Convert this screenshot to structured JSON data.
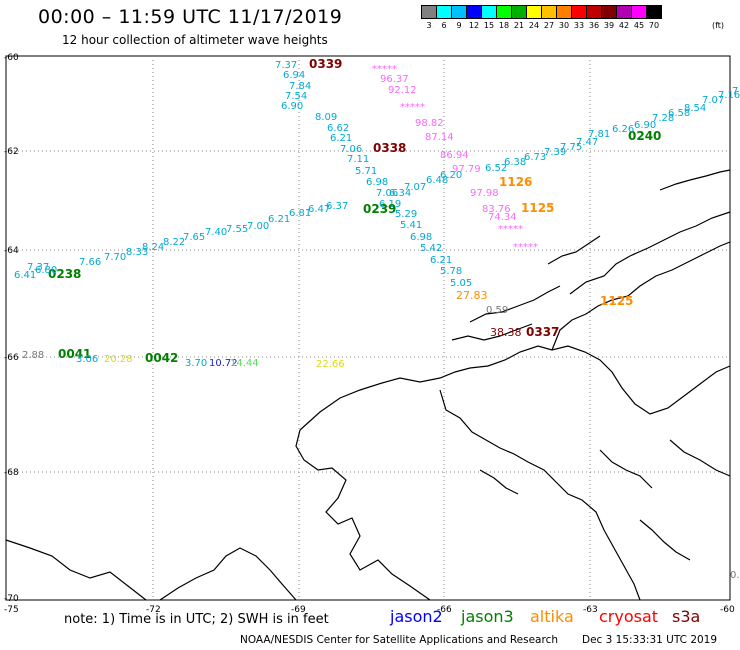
{
  "header": {
    "title": "00:00 – 11:59 UTC 11/17/2019",
    "subtitle": "12 hour collection of altimeter wave heights"
  },
  "legend": {
    "labels": [
      "3",
      "6",
      "9",
      "12",
      "15",
      "18",
      "21",
      "24",
      "27",
      "30",
      "33",
      "36",
      "39",
      "42",
      "45",
      "70"
    ],
    "colors": [
      "#808080",
      "#00ffff",
      "#00bfff",
      "#0000ff",
      "#00ffff",
      "#00ff00",
      "#00b000",
      "#ffff00",
      "#ffc000",
      "#ff8000",
      "#ff0000",
      "#c00000",
      "#800000",
      "#b000b0",
      "#ff00ff",
      "#000000"
    ],
    "units": "(ft)"
  },
  "axes": {
    "lat_labels": [
      "-60",
      "-62",
      "-64",
      "-66",
      "-68",
      "-70"
    ],
    "lon_labels": [
      "-75",
      "-72",
      "-69",
      "-66",
      "-63",
      "-60"
    ]
  },
  "satellite_colors": {
    "jason2": "#0000ff",
    "jason3": "#008000",
    "altika": "#ff8c00",
    "cryosat": "#ff0000",
    "s3a": "#800000",
    "cyan": "#00aad4",
    "pink": "#ff66ff",
    "lavender": "#e080e0",
    "gray": "#777777",
    "yellow": "#dddd00",
    "lime": "#55dd55",
    "navy": "#2222cc"
  },
  "map_labels": [
    {
      "text": "7.37",
      "color": "cyan"
    },
    {
      "text": "6.94",
      "color": "cyan"
    },
    {
      "text": "7.84",
      "color": "cyan"
    },
    {
      "text": "7.54",
      "color": "cyan"
    },
    {
      "text": "6.90",
      "color": "cyan"
    },
    {
      "text": "8.09",
      "color": "cyan"
    },
    {
      "text": "6.62",
      "color": "cyan"
    },
    {
      "text": "6.21",
      "color": "cyan"
    },
    {
      "text": "7.06",
      "color": "cyan"
    },
    {
      "text": "7.11",
      "color": "cyan"
    },
    {
      "text": "5.71",
      "color": "cyan"
    },
    {
      "text": "6.98",
      "color": "cyan"
    },
    {
      "text": "7.06",
      "color": "cyan"
    },
    {
      "text": "6.34",
      "color": "cyan"
    },
    {
      "text": "6.19",
      "color": "cyan"
    },
    {
      "text": "5.29",
      "color": "cyan"
    },
    {
      "text": "5.41",
      "color": "cyan"
    },
    {
      "text": "6.98",
      "color": "cyan"
    },
    {
      "text": "5.42",
      "color": "cyan"
    },
    {
      "text": "6.21",
      "color": "cyan"
    },
    {
      "text": "5.78",
      "color": "cyan"
    },
    {
      "text": "5.05",
      "color": "cyan"
    },
    {
      "text": "0339",
      "color": "s3a"
    },
    {
      "text": "0338",
      "color": "s3a"
    },
    {
      "text": "*****",
      "color": "pink"
    },
    {
      "text": "96.37",
      "color": "pink"
    },
    {
      "text": "92.12",
      "color": "pink"
    },
    {
      "text": "*****",
      "color": "pink"
    },
    {
      "text": "98.82",
      "color": "pink"
    },
    {
      "text": "87.14",
      "color": "pink"
    },
    {
      "text": "86.94",
      "color": "pink"
    },
    {
      "text": "97.79",
      "color": "pink"
    },
    {
      "text": "97.98",
      "color": "pink"
    },
    {
      "text": "83.76",
      "color": "pink"
    },
    {
      "text": "74.34",
      "color": "pink"
    },
    {
      "text": "*****",
      "color": "pink"
    },
    {
      "text": "*****",
      "color": "pink"
    },
    {
      "text": "1126",
      "color": "altika"
    },
    {
      "text": "1125",
      "color": "altika"
    },
    {
      "text": "1125",
      "color": "altika"
    },
    {
      "text": "27.83",
      "color": "altika"
    },
    {
      "text": "0.59",
      "color": "gray"
    },
    {
      "text": "0240",
      "color": "jason3"
    },
    {
      "text": "0239",
      "color": "jason3"
    },
    {
      "text": "0238",
      "color": "jason3"
    },
    {
      "text": "0041",
      "color": "jason3"
    },
    {
      "text": "0042",
      "color": "jason3"
    },
    {
      "text": "7.37",
      "color": "cyan"
    },
    {
      "text": "7.66",
      "color": "cyan"
    },
    {
      "text": "7.70",
      "color": "cyan"
    },
    {
      "text": "8.33",
      "color": "cyan"
    },
    {
      "text": "8.24",
      "color": "cyan"
    },
    {
      "text": "8.22",
      "color": "cyan"
    },
    {
      "text": "7.65",
      "color": "cyan"
    },
    {
      "text": "7.40",
      "color": "cyan"
    },
    {
      "text": "7.55",
      "color": "cyan"
    },
    {
      "text": "7.00",
      "color": "cyan"
    },
    {
      "text": "6.21",
      "color": "cyan"
    },
    {
      "text": "6.81",
      "color": "cyan"
    },
    {
      "text": "6.47",
      "color": "cyan"
    },
    {
      "text": "6.37",
      "color": "cyan"
    },
    {
      "text": "6.41",
      "color": "cyan"
    },
    {
      "text": "6.80",
      "color": "cyan"
    },
    {
      "text": "7.07",
      "color": "cyan"
    },
    {
      "text": "6.48",
      "color": "cyan"
    },
    {
      "text": "6.20",
      "color": "cyan"
    },
    {
      "text": "6.52",
      "color": "cyan"
    },
    {
      "text": "6.38",
      "color": "cyan"
    },
    {
      "text": "6.73",
      "color": "cyan"
    },
    {
      "text": "7.39",
      "color": "cyan"
    },
    {
      "text": "7.75",
      "color": "cyan"
    },
    {
      "text": "7.47",
      "color": "cyan"
    },
    {
      "text": "7.81",
      "color": "cyan"
    },
    {
      "text": "6.26",
      "color": "cyan"
    },
    {
      "text": "6.90",
      "color": "cyan"
    },
    {
      "text": "7.28",
      "color": "cyan"
    },
    {
      "text": "6.58",
      "color": "cyan"
    },
    {
      "text": "8.54",
      "color": "cyan"
    },
    {
      "text": "7.07",
      "color": "cyan"
    },
    {
      "text": "7.16",
      "color": "cyan"
    },
    {
      "text": "7",
      "color": "cyan"
    },
    {
      "text": "2.88",
      "color": "gray"
    },
    {
      "text": "3.06",
      "color": "cyan"
    },
    {
      "text": "20.28",
      "color": "yellow"
    },
    {
      "text": "3.70",
      "color": "cyan"
    },
    {
      "text": "10.72",
      "color": "navy"
    },
    {
      "text": "14.44",
      "color": "lime"
    },
    {
      "text": "22.66",
      "color": "yellow"
    },
    {
      "text": "38.38",
      "color": "s3a"
    },
    {
      "text": "0337",
      "color": "s3a"
    },
    {
      "text": "0.",
      "color": "gray"
    }
  ],
  "footer": {
    "note": "note:  1) Time is in UTC;  2) SWH is in feet",
    "sat_jason2": "jason2",
    "sat_jason3": "jason3",
    "sat_altika": "altika",
    "sat_cryosat": "cryosat",
    "sat_s3a": "s3a",
    "credit": "NOAA/NESDIS Center for Satellite Applications and Research",
    "timestamp": "Dec  3 15:33:31 UTC 2019"
  }
}
